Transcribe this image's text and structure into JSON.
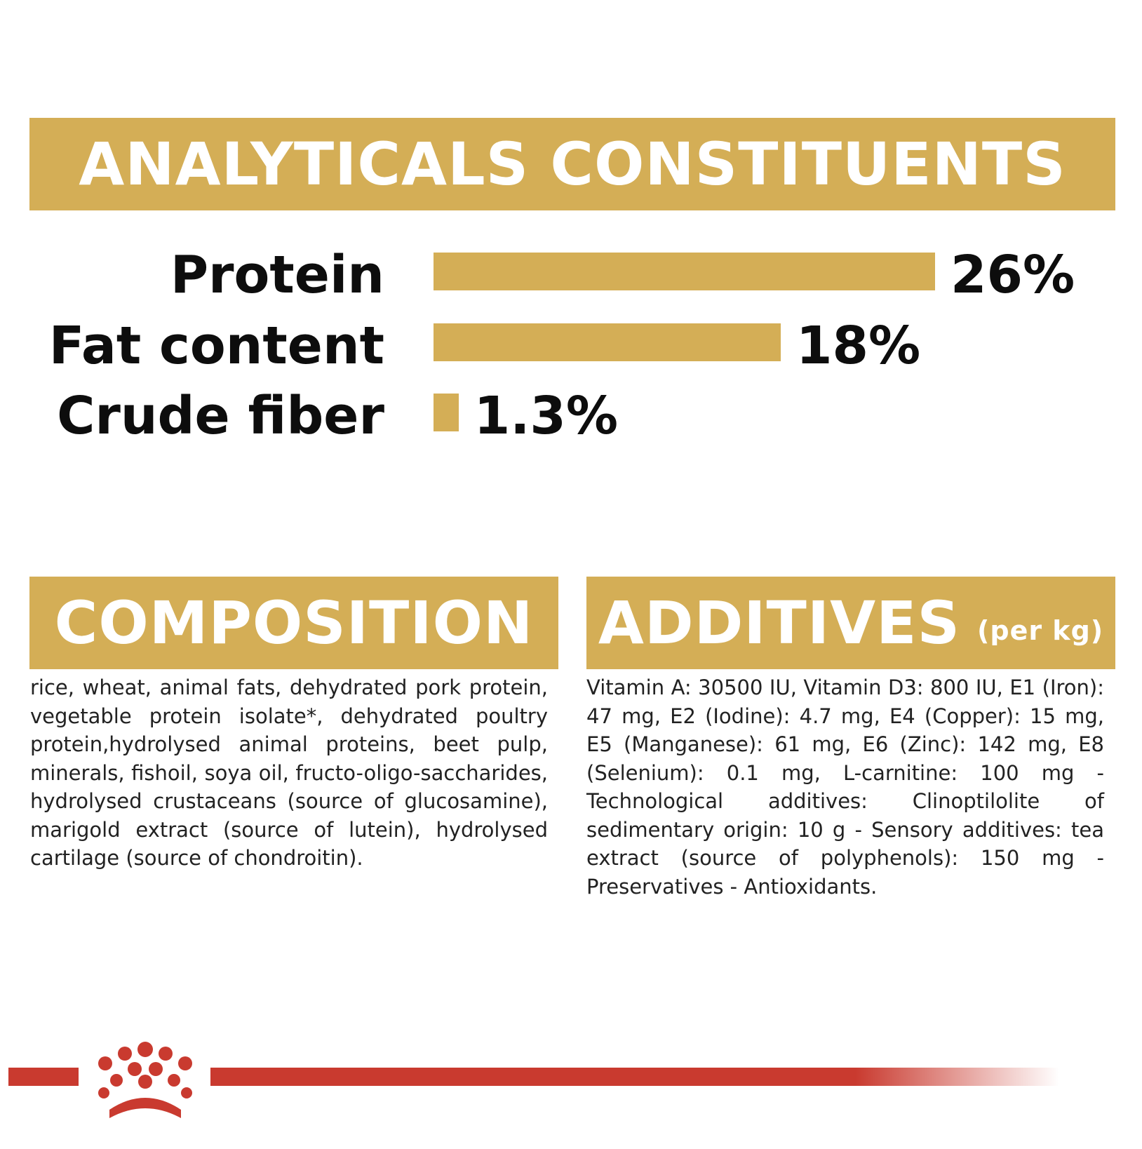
{
  "analytical": {
    "title": "ANALYTICALS CONSTITUENTS",
    "rows": [
      {
        "label": "Protein",
        "value_label": "26%",
        "value": 26
      },
      {
        "label": "Fat content",
        "value_label": "18%",
        "value": 18
      },
      {
        "label": "Crude fiber",
        "value_label": "1.3%",
        "value": 1.3
      }
    ]
  },
  "composition": {
    "title": "COMPOSITION",
    "text": "rice, wheat, animal fats, dehydrated pork protein, vegetable protein isolate*, dehydrated poultry protein,hydrolysed animal proteins, beet pulp, minerals, fishoil, soya oil, fructo-oligo-saccharides, hydrolysed crustaceans (source of glucosamine), marigold extract (source of lutein), hydrolysed cartilage (source of chondroitin)."
  },
  "additives": {
    "title": "ADDITIVES",
    "unit": "(per kg)",
    "text": "Vitamin A: 30500 IU, Vitamin D3: 800 IU, E1 (Iron): 47 mg, E2 (Iodine): 4.7 mg, E4 (Copper): 15 mg, E5 (Manganese): 61 mg, E6 (Zinc): 142 mg, E8 (Selenium): 0.1 mg, L-carnitine: 100 mg - Technological additives: Clinoptilolite of sedimentary origin: 10 g - Sensory additives: tea extract (source of polyphenols): 150 mg - Preservatives - Antioxidants."
  },
  "colors": {
    "accent_gold": "#d4ae56",
    "brand_red": "#c93a2f",
    "text": "#0d0d0d"
  },
  "logo": {
    "icon": "crown-icon"
  }
}
